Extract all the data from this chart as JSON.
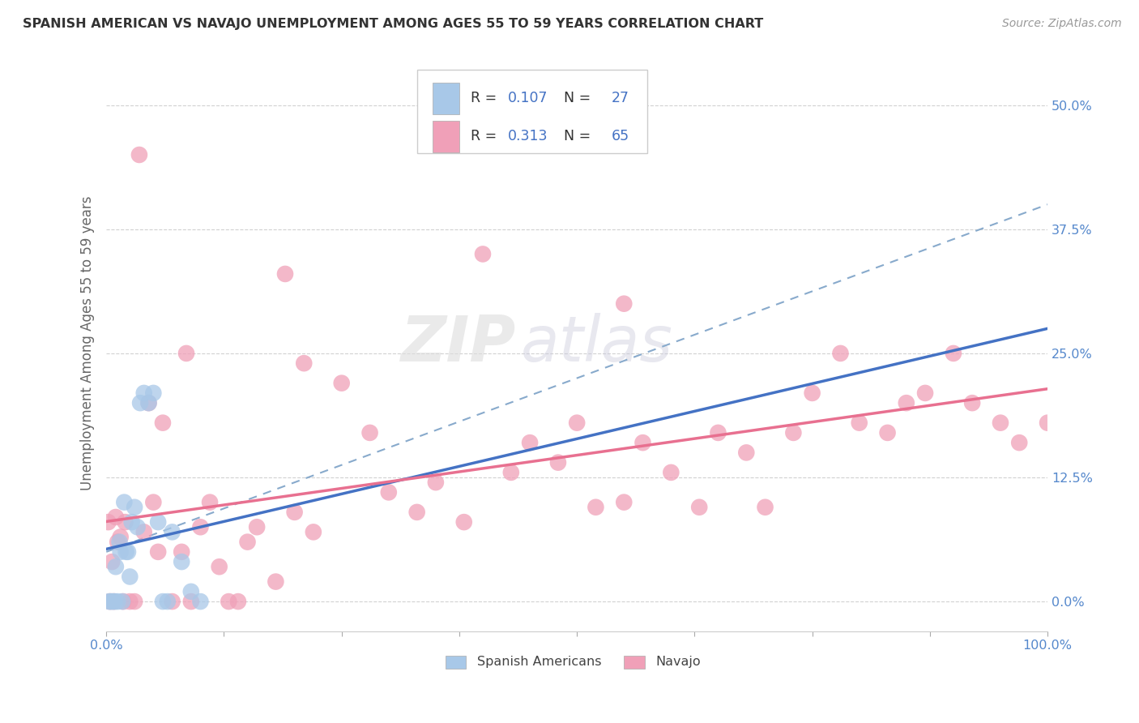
{
  "title": "SPANISH AMERICAN VS NAVAJO UNEMPLOYMENT AMONG AGES 55 TO 59 YEARS CORRELATION CHART",
  "source": "Source: ZipAtlas.com",
  "ylabel": "Unemployment Among Ages 55 to 59 years",
  "xlim": [
    0,
    100
  ],
  "ylim": [
    -3,
    55
  ],
  "yticks": [
    0,
    12.5,
    25.0,
    37.5,
    50.0
  ],
  "ytick_labels": [
    "0.0%",
    "12.5%",
    "25.0%",
    "37.5%",
    "50.0%"
  ],
  "xticks": [
    0,
    12.5,
    25.0,
    37.5,
    50.0,
    62.5,
    75.0,
    87.5,
    100.0
  ],
  "xtick_labels": [
    "0.0%",
    "",
    "",
    "",
    "",
    "",
    "",
    "",
    "100.0%"
  ],
  "color_blue": "#A8C8E8",
  "color_pink": "#F0A0B8",
  "line_blue_solid": "#4472C4",
  "line_blue_dash": "#6699CC",
  "line_pink": "#E87090",
  "watermark_zip": "ZIP",
  "watermark_atlas": "atlas",
  "spanish_x": [
    0.3,
    0.5,
    0.7,
    0.9,
    1.0,
    1.2,
    1.4,
    1.5,
    1.7,
    1.9,
    2.1,
    2.3,
    2.5,
    2.7,
    3.0,
    3.3,
    3.6,
    4.0,
    4.5,
    5.0,
    5.5,
    6.0,
    6.5,
    7.0,
    8.0,
    9.0,
    10.0
  ],
  "spanish_y": [
    0.0,
    0.0,
    0.0,
    0.0,
    3.5,
    0.0,
    6.0,
    5.0,
    0.0,
    10.0,
    5.0,
    5.0,
    2.5,
    8.0,
    9.5,
    7.5,
    20.0,
    21.0,
    20.0,
    21.0,
    8.0,
    0.0,
    0.0,
    7.0,
    4.0,
    1.0,
    0.0
  ],
  "navajo_x": [
    0.2,
    0.4,
    0.6,
    0.8,
    1.0,
    1.2,
    1.5,
    1.8,
    2.0,
    2.5,
    3.0,
    3.5,
    4.0,
    5.0,
    5.5,
    6.0,
    7.0,
    8.0,
    9.0,
    10.0,
    11.0,
    12.0,
    13.0,
    14.0,
    15.0,
    16.0,
    18.0,
    20.0,
    22.0,
    25.0,
    28.0,
    30.0,
    33.0,
    35.0,
    38.0,
    40.0,
    43.0,
    45.0,
    48.0,
    50.0,
    52.0,
    55.0,
    57.0,
    60.0,
    63.0,
    65.0,
    68.0,
    70.0,
    73.0,
    75.0,
    78.0,
    80.0,
    83.0,
    85.0,
    87.0,
    90.0,
    92.0,
    95.0,
    97.0,
    100.0,
    4.5,
    8.5,
    19.0,
    21.0,
    55.0
  ],
  "navajo_y": [
    8.0,
    0.0,
    4.0,
    0.0,
    8.5,
    6.0,
    6.5,
    0.0,
    8.0,
    0.0,
    0.0,
    45.0,
    7.0,
    10.0,
    5.0,
    18.0,
    0.0,
    5.0,
    0.0,
    7.5,
    10.0,
    3.5,
    0.0,
    0.0,
    6.0,
    7.5,
    2.0,
    9.0,
    7.0,
    22.0,
    17.0,
    11.0,
    9.0,
    12.0,
    8.0,
    35.0,
    13.0,
    16.0,
    14.0,
    18.0,
    9.5,
    10.0,
    16.0,
    13.0,
    9.5,
    17.0,
    15.0,
    9.5,
    17.0,
    21.0,
    25.0,
    18.0,
    17.0,
    20.0,
    21.0,
    25.0,
    20.0,
    18.0,
    16.0,
    18.0,
    20.0,
    25.0,
    33.0,
    24.0,
    30.0
  ]
}
